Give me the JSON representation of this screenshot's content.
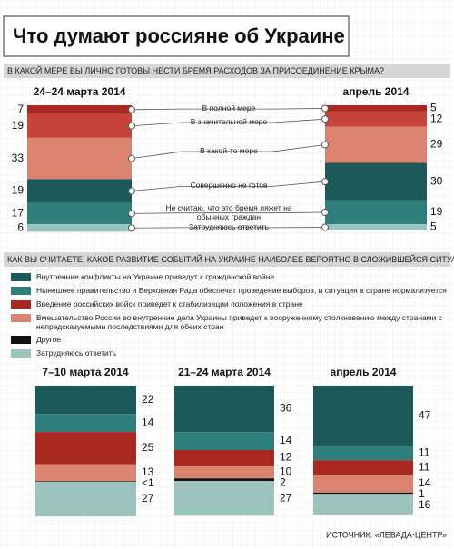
{
  "title": "Что думают россияне об Украине",
  "source": "ИСТОЧНИК: «ЛЕВАДА-ЦЕНТР»",
  "chart_data": [
    {
      "type": "stacked-bar",
      "title": "В КАКОЙ МЕРЕ ВЫ ЛИЧНО ГОТОВЫ НЕСТИ БРЕМЯ РАСХОДОВ ЗА ПРИСОЕДИНЕНИЕ КРЫМА?",
      "categories": [
        "В полной мере",
        "В значительной мере",
        "В какой-то мере",
        "Совершенно не готов",
        "Не считаю, что это бремя ляжет на обычных граждан",
        "Затрудняюсь ответить"
      ],
      "colors": [
        "#a9281f",
        "#c4443a",
        "#da8470",
        "#1c5a5a",
        "#2e7e7c",
        "#9cc3be"
      ],
      "series": [
        {
          "name": "24–24 марта 2014",
          "values": [
            7,
            19,
            33,
            19,
            17,
            6
          ]
        },
        {
          "name": "апрель 2014",
          "values": [
            5,
            12,
            29,
            30,
            19,
            5
          ]
        }
      ]
    },
    {
      "type": "stacked-bar",
      "title": "КАК ВЫ СЧИТАЕТЕ, КАКОЕ РАЗВИТИЕ СОБЫТИЙ НА УКРАИНЕ НАИБОЛЕЕ ВЕРОЯТНО В СЛОЖИВШЕЙСЯ СИТУАЦИИ?",
      "categories": [
        "Внутренние конфликты на Украине приведут к гражданской войне",
        "Нынешнее правительство и Верховная Рада обеспечат проведение выборов, и ситуация в стране нормализуется",
        "Введение российских войск приведет к стабилизации положения в стране",
        "Вмешательство России во внутренние дела Украины приведет к вооруженному столкновению между странами с непредсказуемыми последствиями для обеих стран",
        "Другое",
        "Затрудняюсь ответить"
      ],
      "colors": [
        "#1c5a5a",
        "#2e7e7c",
        "#a9281f",
        "#da8470",
        "#111111",
        "#9cc3be"
      ],
      "series": [
        {
          "name": "7–10 марта 2014",
          "values": [
            22,
            14,
            25,
            13,
            0.5,
            27
          ],
          "value_labels": [
            "22",
            "14",
            "25",
            "13",
            "<1",
            "27"
          ]
        },
        {
          "name": "21–24 марта 2014",
          "values": [
            36,
            14,
            12,
            10,
            2,
            27
          ]
        },
        {
          "name": "апрель 2014",
          "values": [
            47,
            11,
            11,
            14,
            1,
            16
          ]
        }
      ]
    }
  ]
}
